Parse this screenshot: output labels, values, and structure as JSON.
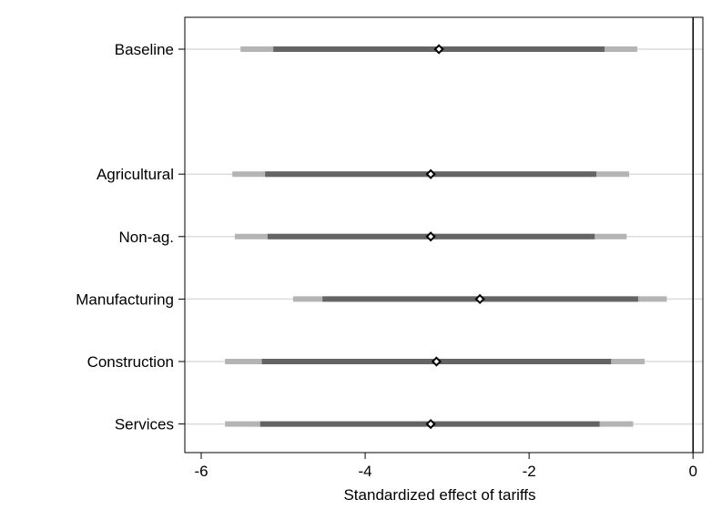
{
  "chart_data": {
    "type": "coefficient_plot",
    "title": "",
    "xlabel": "Standardized effect of tariffs",
    "ylabel": "",
    "xlim": [
      -6.2,
      0.12
    ],
    "xticks": [
      -6,
      -4,
      -2,
      0
    ],
    "xtick_labels": [
      "-6",
      "-4",
      "-2",
      "0"
    ],
    "reference_line_x": 0,
    "grid": "horizontal",
    "legend": "none",
    "categories": [
      "Baseline",
      "Agricultural",
      "Non-ag.",
      "Manufacturing",
      "Construction",
      "Services"
    ],
    "rows": [
      1,
      3,
      4,
      5,
      6,
      7
    ],
    "point_estimates": [
      -3.1,
      -3.2,
      -3.2,
      -2.6,
      -3.13,
      -3.2
    ],
    "ci_inner": [
      [
        -5.12,
        -1.08
      ],
      [
        -5.22,
        -1.18
      ],
      [
        -5.19,
        -1.2
      ],
      [
        -4.52,
        -0.67
      ],
      [
        -5.26,
        -1.0
      ],
      [
        -5.28,
        -1.14
      ]
    ],
    "ci_outer": [
      [
        -5.52,
        -0.68
      ],
      [
        -5.62,
        -0.78
      ],
      [
        -5.59,
        -0.81
      ],
      [
        -4.88,
        -0.32
      ],
      [
        -5.71,
        -0.59
      ],
      [
        -5.71,
        -0.73
      ]
    ],
    "colors": {
      "inner_ci": "#646464",
      "outer_ci": "#b4b4b4",
      "marker_fill": "#ffffff",
      "marker_stroke": "#000000",
      "gridline": "#dcdcdc",
      "reference_line": "#000000"
    }
  }
}
